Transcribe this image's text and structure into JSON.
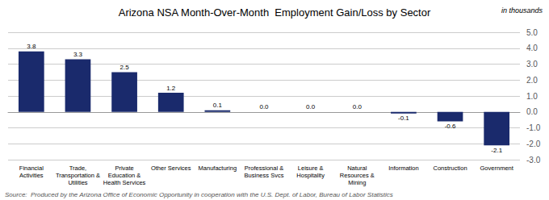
{
  "chart_data": {
    "type": "bar",
    "title": "Arizona NSA Month-Over-Month  Employment Gain/Loss by Sector",
    "subtitle": "in thousands",
    "source": "Source:  Produced by the Arizona Office of Economic Opportunity in cooperation with the U.S. Dept. of Labor, Bureau of Labor Statistics",
    "categories": [
      "Financial\nActivities",
      "Trade,\nTransportation &\nUtilities",
      "Private\nEducation &\nHealth Services",
      "Other Services",
      "Manufacturing",
      "Professional &\nBusiness Svcs",
      "Leisure &\nHospitality",
      "Natural\nResources &\nMining",
      "Information",
      "Construction",
      "Government"
    ],
    "values": [
      3.8,
      3.3,
      2.5,
      1.2,
      0.1,
      0.0,
      0.0,
      0.0,
      -0.1,
      -0.6,
      -2.1
    ],
    "value_labels": [
      "3.8",
      "3.3",
      "2.5",
      "1.2",
      "0.1",
      "0.0",
      "0.0",
      "0.0",
      "-0.1",
      "-0.6",
      "-2.1"
    ],
    "color": "#1a2a6c",
    "ylim": [
      -3.0,
      5.0
    ],
    "yticks": [
      {
        "value": -3.0,
        "label": "-3.0"
      },
      {
        "value": -2.0,
        "label": "-2.0"
      },
      {
        "value": -1.0,
        "label": "-1.0"
      },
      {
        "value": 0.0,
        "label": "0.0"
      },
      {
        "value": 1.0,
        "label": "1.0"
      },
      {
        "value": 2.0,
        "label": "2.0"
      },
      {
        "value": 3.0,
        "label": "3.0"
      },
      {
        "value": 4.0,
        "label": "4.0"
      },
      {
        "value": 5.0,
        "label": "5.0"
      }
    ],
    "grid": true,
    "data_labels": true
  }
}
